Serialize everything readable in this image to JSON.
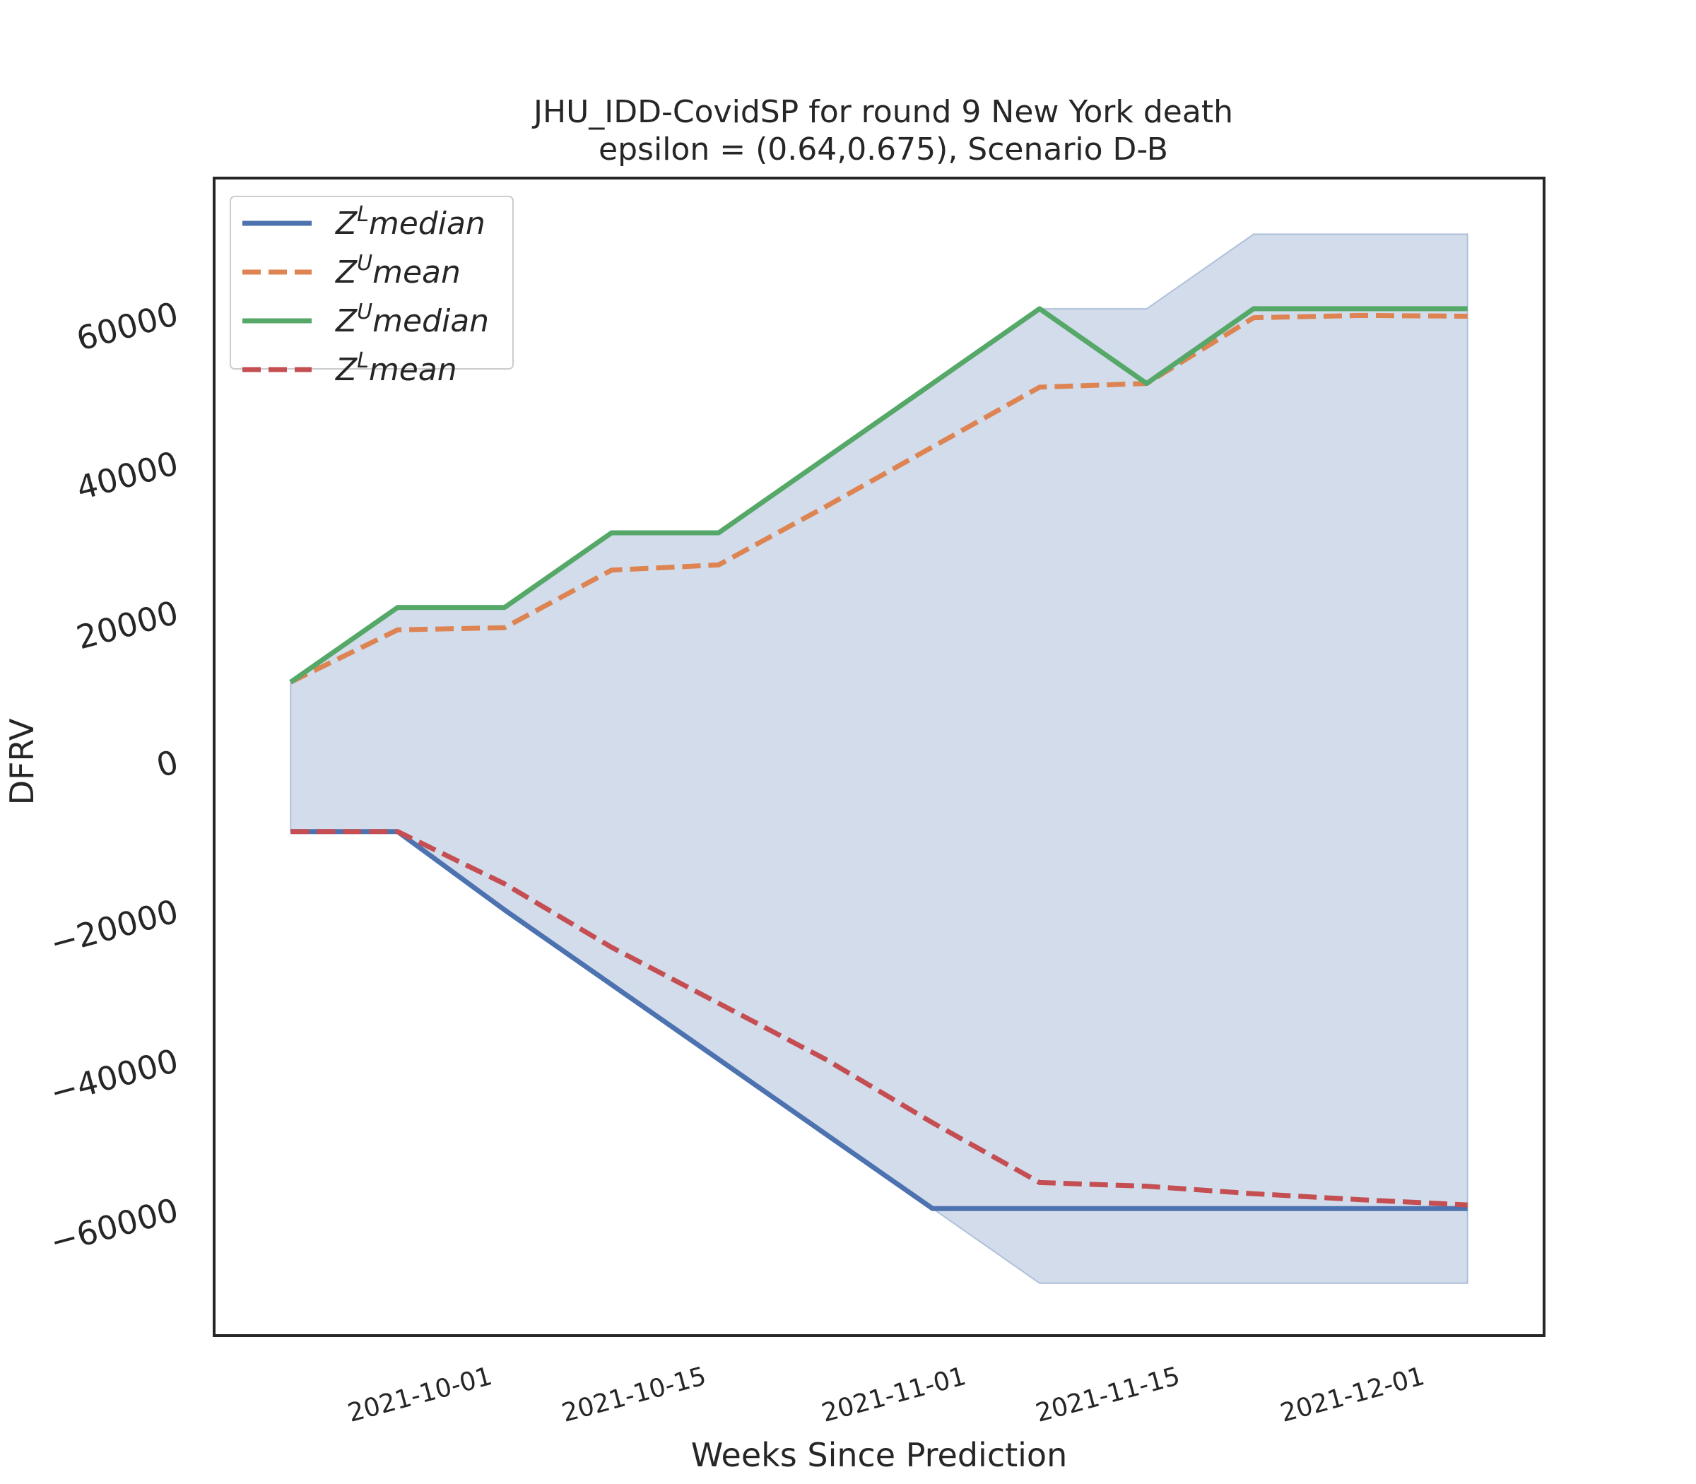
{
  "chart_data": {
    "type": "line",
    "title": "JHU_IDD-CovidSP for round 9 New York  death",
    "subtitle": "epsilon = (0.64,0.675), Scenario D-B",
    "xlabel": "Weeks Since Prediction",
    "ylabel": "DFRV",
    "x": [
      "2021-09-18",
      "2021-09-25",
      "2021-10-02",
      "2021-10-09",
      "2021-10-16",
      "2021-10-23",
      "2021-10-30",
      "2021-11-06",
      "2021-11-13",
      "2021-11-20",
      "2021-11-27",
      "2021-12-04"
    ],
    "x_ticks": [
      "2021-10-01",
      "2021-10-15",
      "2021-11-01",
      "2021-11-15",
      "2021-12-01"
    ],
    "y_ticks": [
      60000,
      40000,
      20000,
      0,
      -20000,
      -40000,
      -60000
    ],
    "y_tick_labels": [
      "60000",
      "40000",
      "20000",
      "0",
      "−20000",
      "−40000",
      "−60000"
    ],
    "ylim": [
      -77000,
      78000
    ],
    "xlim": [
      "2021-09-13",
      "2021-12-09"
    ],
    "grid": false,
    "legend_position": "upper-left",
    "series": [
      {
        "name": "Z^L median",
        "legend_base": "Z",
        "legend_sup": "L",
        "legend_suffix": "median",
        "color": "#4c72b0",
        "dash": "solid",
        "values": [
          -9500,
          -9500,
          -20000,
          -30000,
          -40000,
          -50000,
          -60000,
          -60000,
          -60000,
          -60000,
          -60000,
          -60000
        ]
      },
      {
        "name": "Z^U mean",
        "legend_base": "Z",
        "legend_sup": "U",
        "legend_suffix": "mean",
        "color": "#dd8452",
        "dash": "dashed",
        "values": [
          10500,
          17500,
          17800,
          25500,
          26200,
          34000,
          42000,
          50000,
          50500,
          59300,
          59600,
          59500
        ]
      },
      {
        "name": "Z^U median",
        "legend_base": "Z",
        "legend_sup": "U",
        "legend_suffix": "median",
        "color": "#55a868",
        "dash": "solid",
        "values": [
          10500,
          20500,
          20500,
          30500,
          30500,
          40500,
          50500,
          60500,
          50500,
          60500,
          60500,
          60500
        ]
      },
      {
        "name": "Z^L mean",
        "legend_base": "Z",
        "legend_sup": "L",
        "legend_suffix": "mean",
        "color": "#c44e52",
        "dash": "dashed",
        "values": [
          -9500,
          -9500,
          -16500,
          -25000,
          -32500,
          -40000,
          -48500,
          -56500,
          -57000,
          -58000,
          -58800,
          -59500
        ]
      }
    ],
    "band": {
      "color": "#4c72b0",
      "opacity": 0.25,
      "upper": [
        10500,
        20500,
        20500,
        30500,
        30500,
        40500,
        50500,
        60500,
        60500,
        70500,
        70500,
        70500
      ],
      "lower": [
        -9500,
        -9500,
        -20000,
        -30000,
        -40000,
        -50000,
        -60000,
        -70000,
        -70000,
        -70000,
        -70000,
        -70000
      ]
    }
  }
}
